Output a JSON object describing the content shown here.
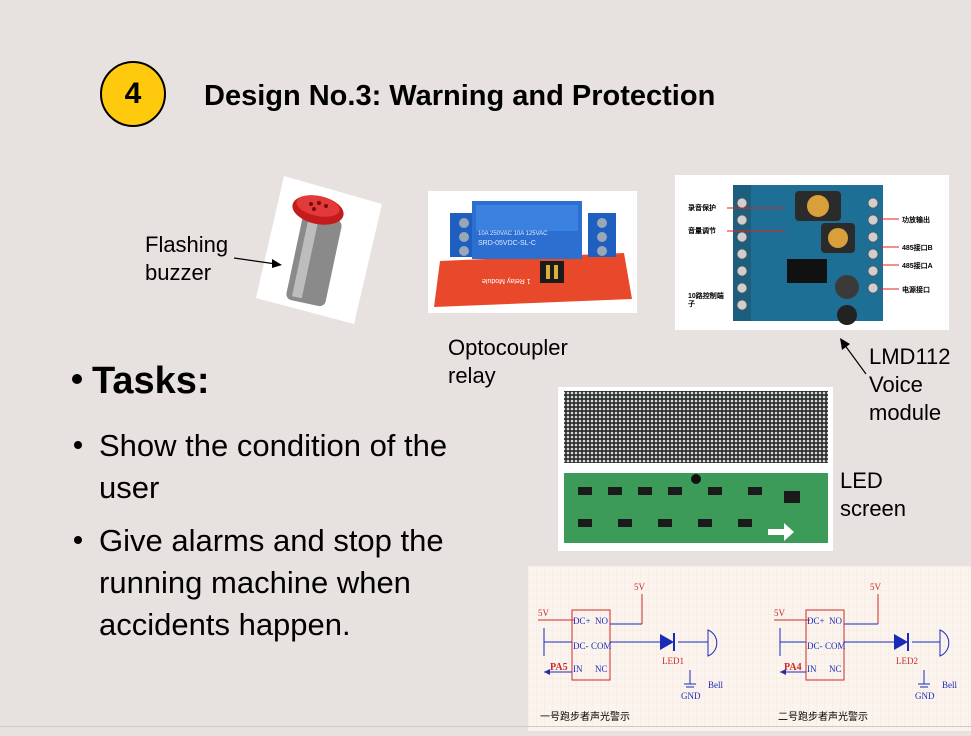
{
  "slide": {
    "number": "4",
    "title": "Design No.3: Warning and Protection"
  },
  "components": {
    "buzzer_label": "Flashing\nbuzzer",
    "relay_label": "Optocoupler\nrelay",
    "voice_label": "LMD112\nVoice\nmodule",
    "led_label": "LED\nscreen"
  },
  "tasks": {
    "heading": "Tasks:",
    "items": [
      "Show the condition of the user",
      "Give alarms and stop the running machine when accidents happen."
    ]
  },
  "relay_photo": {
    "print1": "10A 250VAC  10A 125VAC",
    "print2": "SRD-05VDC-SL-C",
    "print3": "1 Relay Module"
  },
  "voice_photo": {
    "callout_protect": "录音保护",
    "callout_volume": "音量调节",
    "callout_amp": "功放输出",
    "callout_485b": "485接口B",
    "callout_485a": "485接口A",
    "callout_power": "电源接口",
    "callout_ctrl": "10路控制端子"
  },
  "schematic": {
    "left": {
      "supply_top": "5V",
      "supply_left": "5V",
      "pin_dc_plus": "DC+",
      "pin_dc_minus": "DC-",
      "pin_in": "IN",
      "pin_no": "NO",
      "pin_com": "COM",
      "pin_nc": "NC",
      "port": "PA5",
      "led": "LED1",
      "bell": "Bell",
      "gnd": "GND",
      "caption": "一号跑步者声光警示"
    },
    "right": {
      "supply_top": "5V",
      "supply_left": "5V",
      "pin_dc_plus": "DC+",
      "pin_dc_minus": "DC-",
      "pin_in": "IN",
      "pin_no": "NO",
      "pin_com": "COM",
      "pin_nc": "NC",
      "port": "PA4",
      "led": "LED2",
      "bell": "Bell",
      "gnd": "GND",
      "caption": "二号跑步者声光警示"
    }
  },
  "colors": {
    "badge": "#ffc90e",
    "background": "#e7e2df",
    "relay_board": "#e8492a",
    "terminal_blue": "#1f5fbf",
    "schematic_red": "#cc2a2a",
    "schematic_blue": "#1a2bb8"
  }
}
